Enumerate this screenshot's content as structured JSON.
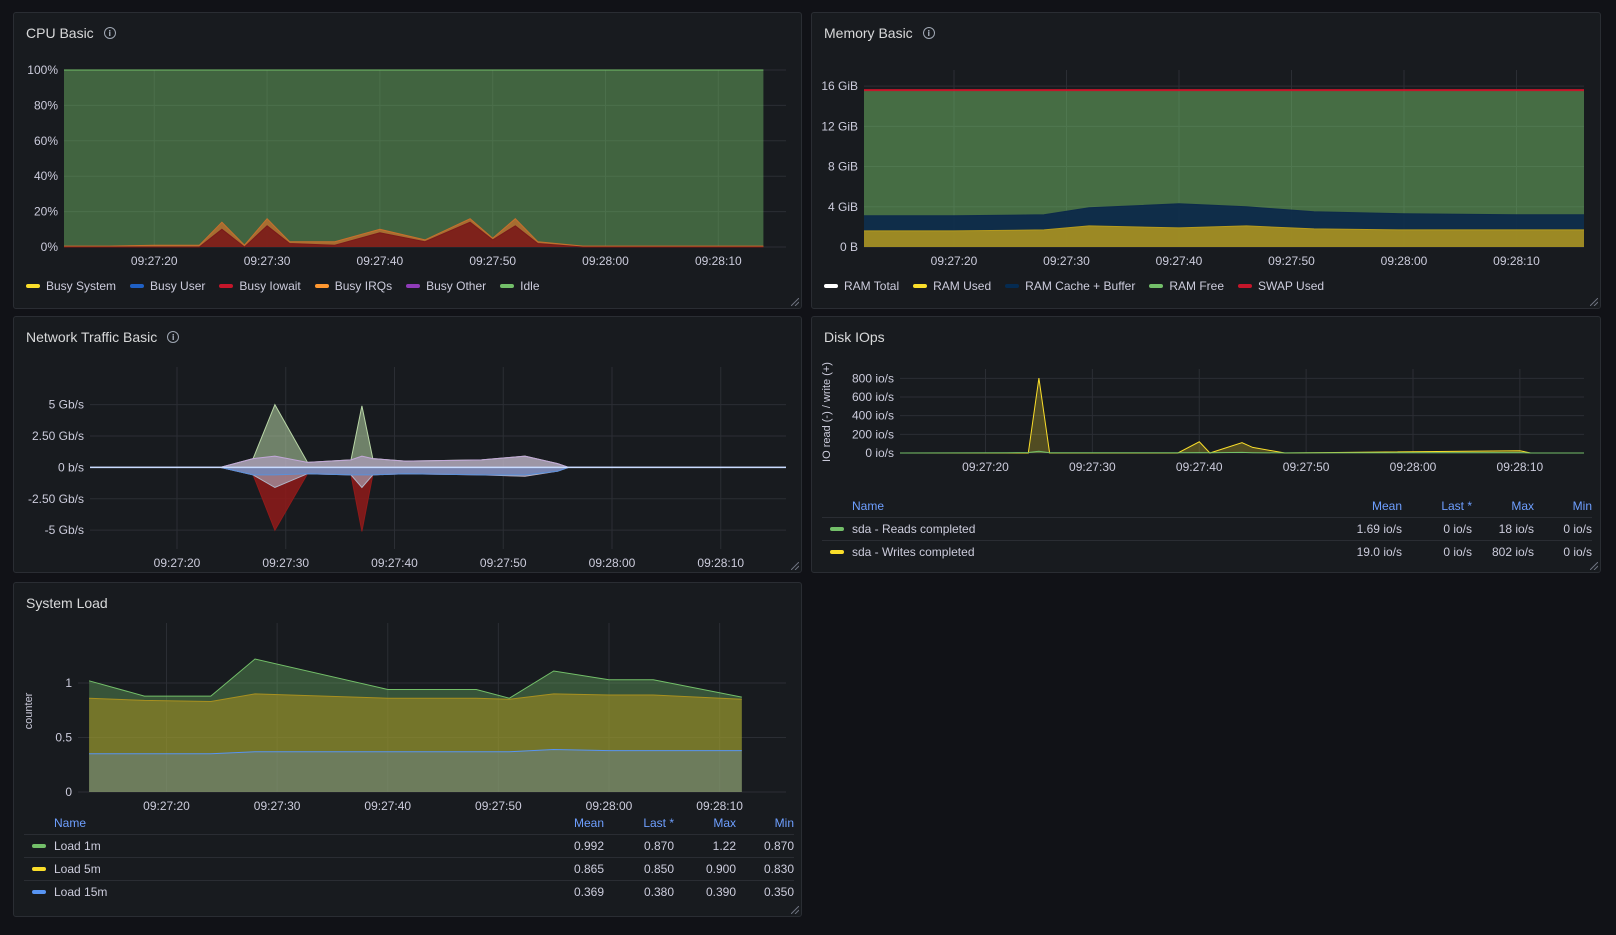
{
  "panels": {
    "cpu": {
      "title": "CPU Basic",
      "legend": [
        {
          "label": "Busy System",
          "color": "#fade2a"
        },
        {
          "label": "Busy User",
          "color": "#1f60c4"
        },
        {
          "label": "Busy Iowait",
          "color": "#c4162a"
        },
        {
          "label": "Busy IRQs",
          "color": "#ff9830"
        },
        {
          "label": "Busy Other",
          "color": "#8f3bb8"
        },
        {
          "label": "Idle",
          "color": "#73bf69"
        }
      ],
      "yticks": [
        "100%",
        "80%",
        "60%",
        "40%",
        "20%",
        "0%"
      ],
      "xticks": [
        "09:27:20",
        "09:27:30",
        "09:27:40",
        "09:27:50",
        "09:28:00",
        "09:28:10"
      ]
    },
    "memory": {
      "title": "Memory Basic",
      "legend": [
        {
          "label": "RAM Total",
          "color": "#ffffff"
        },
        {
          "label": "RAM Used",
          "color": "#fade2a"
        },
        {
          "label": "RAM Cache + Buffer",
          "color": "#052b51"
        },
        {
          "label": "RAM Free",
          "color": "#73bf69"
        },
        {
          "label": "SWAP Used",
          "color": "#c4162a"
        }
      ],
      "yticks": [
        "16 GiB",
        "12 GiB",
        "8 GiB",
        "4 GiB",
        "0 B"
      ],
      "xticks": [
        "09:27:20",
        "09:27:30",
        "09:27:40",
        "09:27:50",
        "09:28:00",
        "09:28:10"
      ]
    },
    "network": {
      "title": "Network Traffic Basic",
      "yticks": [
        "5 Gb/s",
        "2.50 Gb/s",
        "0 b/s",
        "-2.50 Gb/s",
        "-5 Gb/s"
      ],
      "xticks": [
        "09:27:20",
        "09:27:30",
        "09:27:40",
        "09:27:50",
        "09:28:00",
        "09:28:10"
      ]
    },
    "disk": {
      "title": "Disk IOps",
      "ylabel": "IO read (-) / write (+)",
      "yticks": [
        "800 io/s",
        "600 io/s",
        "400 io/s",
        "200 io/s",
        "0 io/s"
      ],
      "xticks": [
        "09:27:20",
        "09:27:30",
        "09:27:40",
        "09:27:50",
        "09:28:00",
        "09:28:10"
      ],
      "table": {
        "headers": {
          "name": "Name",
          "mean": "Mean",
          "last": "Last *",
          "max": "Max",
          "min": "Min"
        },
        "rows": [
          {
            "name": "sda - Reads completed",
            "color": "#73bf69",
            "mean": "1.69 io/s",
            "last": "0 io/s",
            "max": "18 io/s",
            "min": "0 io/s"
          },
          {
            "name": "sda - Writes completed",
            "color": "#fade2a",
            "mean": "19.0 io/s",
            "last": "0 io/s",
            "max": "802 io/s",
            "min": "0 io/s"
          }
        ]
      }
    },
    "load": {
      "title": "System Load",
      "ylabel": "counter",
      "yticks": [
        "1",
        "0.5",
        "0"
      ],
      "xticks": [
        "09:27:20",
        "09:27:30",
        "09:27:40",
        "09:27:50",
        "09:28:00",
        "09:28:10"
      ],
      "table": {
        "headers": {
          "name": "Name",
          "mean": "Mean",
          "last": "Last *",
          "max": "Max",
          "min": "Min"
        },
        "rows": [
          {
            "name": "Load 1m",
            "color": "#73bf69",
            "mean": "0.992",
            "last": "0.870",
            "max": "1.22",
            "min": "0.870"
          },
          {
            "name": "Load 5m",
            "color": "#fade2a",
            "mean": "0.865",
            "last": "0.850",
            "max": "0.900",
            "min": "0.830"
          },
          {
            "name": "Load 15m",
            "color": "#5794f2",
            "mean": "0.369",
            "last": "0.380",
            "max": "0.390",
            "min": "0.350"
          }
        ]
      }
    }
  },
  "chart_data": [
    {
      "type": "area",
      "title": "CPU Basic",
      "ylim": [
        0,
        100
      ],
      "x": [
        "09:27:12",
        "09:27:16",
        "09:27:20",
        "09:27:24",
        "09:27:26",
        "09:27:28",
        "09:27:30",
        "09:27:32",
        "09:27:36",
        "09:27:40",
        "09:27:44",
        "09:27:48",
        "09:27:50",
        "09:27:52",
        "09:27:54",
        "09:27:58",
        "09:28:04",
        "09:28:10",
        "09:28:14"
      ],
      "series": [
        {
          "name": "Busy Iowait",
          "values": [
            0,
            0,
            0,
            0,
            10,
            0,
            12,
            2,
            1,
            8,
            3,
            14,
            4,
            12,
            2,
            0,
            0,
            0,
            0
          ]
        },
        {
          "name": "Busy System",
          "values": [
            0.5,
            0.5,
            1,
            1,
            4,
            1,
            4,
            1,
            2,
            2,
            1,
            2,
            1,
            4,
            1,
            0.5,
            0.5,
            0.5,
            0.5
          ]
        },
        {
          "name": "Idle",
          "values": [
            99,
            99,
            98,
            99,
            83,
            98,
            82,
            96,
            96,
            89,
            95,
            83,
            94,
            80,
            96,
            99,
            99,
            99,
            99
          ]
        }
      ]
    },
    {
      "type": "area",
      "title": "Memory Basic",
      "ylim": [
        0,
        16
      ],
      "x": [
        "09:27:12",
        "09:27:20",
        "09:27:28",
        "09:27:32",
        "09:27:40",
        "09:27:46",
        "09:27:52",
        "09:28:00",
        "09:28:10",
        "09:28:16"
      ],
      "series": [
        {
          "name": "RAM Total",
          "values": [
            15.6,
            15.6,
            15.6,
            15.6,
            15.6,
            15.6,
            15.6,
            15.6,
            15.6,
            15.6
          ]
        },
        {
          "name": "RAM Used",
          "values": [
            1.6,
            1.6,
            1.7,
            2.1,
            1.9,
            2.1,
            1.8,
            1.7,
            1.7,
            1.7
          ]
        },
        {
          "name": "RAM Cache + Buffer",
          "values": [
            3.1,
            3.1,
            3.2,
            3.9,
            4.3,
            4.0,
            3.5,
            3.3,
            3.2,
            3.2
          ]
        },
        {
          "name": "SWAP Used",
          "values": [
            0,
            0,
            0,
            0,
            0,
            0,
            0,
            0,
            0,
            0
          ]
        }
      ]
    },
    {
      "type": "area",
      "title": "Network Traffic Basic",
      "ylim": [
        -5,
        5
      ],
      "x": [
        "09:27:12",
        "09:27:24",
        "09:27:27",
        "09:27:29",
        "09:27:32",
        "09:27:36",
        "09:27:37",
        "09:27:38",
        "09:27:41",
        "09:27:48",
        "09:27:52",
        "09:27:55",
        "09:27:56",
        "09:28:16"
      ],
      "series": [
        {
          "name": "receive",
          "values": [
            0,
            0,
            0.7,
            5.0,
            0.4,
            0.6,
            4.9,
            0.7,
            0.5,
            0.6,
            0.9,
            0.3,
            0,
            0
          ]
        },
        {
          "name": "transmit",
          "values": [
            0,
            0,
            -0.6,
            -5.0,
            -0.5,
            -0.6,
            -5.1,
            -0.6,
            -0.5,
            -0.6,
            -0.7,
            -0.3,
            0,
            0
          ]
        }
      ]
    },
    {
      "type": "line",
      "title": "Disk IOps",
      "ylim": [
        0,
        800
      ],
      "x": [
        "09:27:12",
        "09:27:22",
        "09:27:24",
        "09:27:25",
        "09:27:26",
        "09:27:38",
        "09:27:40",
        "09:27:41",
        "09:27:44",
        "09:27:45",
        "09:27:48",
        "09:28:10",
        "09:28:11",
        "09:28:16"
      ],
      "series": [
        {
          "name": "sda - Reads completed",
          "values": [
            0,
            2,
            5,
            18,
            3,
            2,
            4,
            2,
            6,
            3,
            1,
            4,
            0,
            0
          ]
        },
        {
          "name": "sda - Writes completed",
          "values": [
            0,
            0,
            0,
            802,
            0,
            0,
            120,
            0,
            110,
            60,
            0,
            25,
            0,
            0
          ]
        }
      ]
    },
    {
      "type": "area",
      "title": "System Load",
      "ylim": [
        0,
        1.3
      ],
      "x": [
        "09:27:13",
        "09:27:18",
        "09:27:24",
        "09:27:28",
        "09:27:40",
        "09:27:48",
        "09:27:51",
        "09:27:55",
        "09:28:00",
        "09:28:04",
        "09:28:12"
      ],
      "series": [
        {
          "name": "Load 1m",
          "values": [
            1.02,
            0.88,
            0.88,
            1.22,
            0.94,
            0.94,
            0.86,
            1.11,
            1.03,
            1.03,
            0.87
          ]
        },
        {
          "name": "Load 5m",
          "values": [
            0.86,
            0.84,
            0.83,
            0.9,
            0.86,
            0.86,
            0.85,
            0.9,
            0.89,
            0.89,
            0.85
          ]
        },
        {
          "name": "Load 15m",
          "values": [
            0.35,
            0.35,
            0.35,
            0.37,
            0.37,
            0.37,
            0.37,
            0.39,
            0.38,
            0.38,
            0.38
          ]
        }
      ]
    }
  ]
}
